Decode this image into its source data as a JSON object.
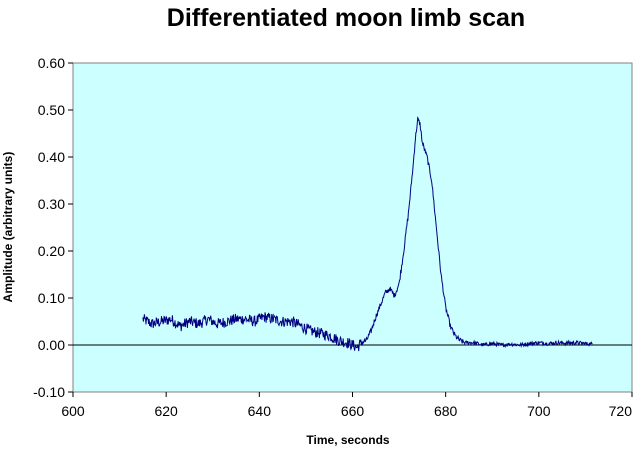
{
  "chart_data": {
    "type": "line",
    "title": "Differentiated moon limb scan",
    "xlabel": "Time, seconds",
    "ylabel": "Amplitude (arbitrary units)",
    "xlim": [
      600,
      720
    ],
    "ylim": [
      -0.1,
      0.6
    ],
    "x_ticks": [
      "600",
      "620",
      "640",
      "660",
      "680",
      "700",
      "720"
    ],
    "y_ticks": [
      "-0.10",
      "0.00",
      "0.10",
      "0.20",
      "0.30",
      "0.40",
      "0.50",
      "0.60"
    ],
    "grid": false,
    "legend": "none",
    "plot_background": "#ccffff",
    "line_color": "#000080",
    "series": [
      {
        "x": [
          615,
          617,
          619,
          621,
          623,
          625,
          627,
          629,
          631,
          633,
          635,
          637,
          639,
          641,
          643,
          645,
          647,
          649,
          651,
          653,
          655,
          657,
          659,
          660,
          661,
          662,
          663,
          664,
          665,
          666,
          667,
          668,
          669,
          670,
          671,
          672,
          673,
          673.5,
          674,
          674.5,
          675,
          676,
          677,
          678,
          679,
          680,
          681,
          682,
          683,
          684,
          686,
          688,
          690,
          692,
          694,
          696,
          698,
          700,
          702,
          704,
          706,
          708,
          710,
          711.5
        ],
        "y": [
          0.055,
          0.045,
          0.05,
          0.055,
          0.04,
          0.05,
          0.045,
          0.055,
          0.045,
          0.05,
          0.055,
          0.055,
          0.05,
          0.06,
          0.055,
          0.05,
          0.05,
          0.04,
          0.03,
          0.025,
          0.02,
          0.01,
          0.005,
          0.0,
          -0.005,
          0.005,
          0.01,
          0.03,
          0.06,
          0.085,
          0.11,
          0.12,
          0.105,
          0.13,
          0.2,
          0.28,
          0.38,
          0.44,
          0.48,
          0.47,
          0.43,
          0.4,
          0.35,
          0.25,
          0.15,
          0.08,
          0.04,
          0.02,
          0.01,
          0.005,
          0.005,
          0.0,
          0.003,
          0.0,
          0.002,
          0.0,
          0.003,
          0.005,
          0.003,
          0.005,
          0.004,
          0.005,
          0.003,
          0.002
        ]
      }
    ]
  }
}
